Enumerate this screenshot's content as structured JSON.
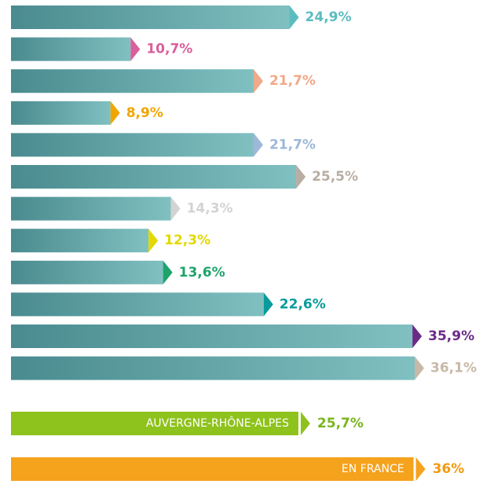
{
  "chart_data": {
    "type": "bar",
    "values": [
      24.9,
      10.7,
      21.7,
      8.9,
      21.7,
      25.5,
      14.3,
      12.3,
      13.6,
      22.6,
      35.9,
      36.1
    ],
    "value_labels": [
      "24,9%",
      "10,7%",
      "21,7%",
      "8,9%",
      "21,7%",
      "25,5%",
      "14,3%",
      "12,3%",
      "13,6%",
      "22,6%",
      "35,9%",
      "36,1%"
    ],
    "colors": [
      "#5bbcc0",
      "#d9609c",
      "#f0a98a",
      "#f0a500",
      "#9db8d9",
      "#b8ada3",
      "#d3d3d3",
      "#e3d800",
      "#1ea36b",
      "#0a9a9a",
      "#6b2a86",
      "#c8b8a6"
    ],
    "bar_color": [
      "#4a8b8f",
      "#80c0c1"
    ],
    "summary": [
      {
        "label": "AUVERGNE-RHÔNE-ALPES",
        "value": 25.7,
        "value_label": "25,7%",
        "color": "#8ec21c",
        "text_color": "#7ab51d"
      },
      {
        "label": "EN FRANCE",
        "value": 36,
        "value_label": "36%",
        "color": "#f5a21c",
        "text_color": "#f29a10"
      }
    ]
  }
}
